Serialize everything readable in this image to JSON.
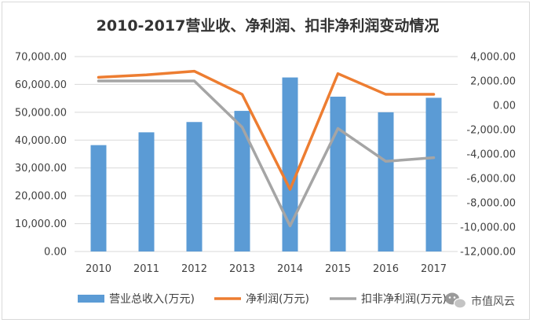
{
  "chart_data": {
    "type": "bar+line",
    "title": "2010-2017营业收、净利润、扣非净利润变动情况",
    "categories": [
      "2010",
      "2011",
      "2012",
      "2013",
      "2014",
      "2015",
      "2016",
      "2017"
    ],
    "series": [
      {
        "name": "营业总收入(万元)",
        "kind": "bar",
        "axis": "left",
        "color": "#5b9bd5",
        "values": [
          38200,
          42800,
          46500,
          50500,
          62500,
          55600,
          50000,
          55200
        ]
      },
      {
        "name": "净利润(万元)",
        "kind": "line",
        "axis": "right",
        "color": "#ed7d31",
        "values": [
          2300,
          2500,
          2800,
          900,
          -6900,
          2600,
          900,
          900
        ]
      },
      {
        "name": "扣非净利润(万元)",
        "kind": "line",
        "axis": "right",
        "color": "#a5a5a5",
        "values": [
          2000,
          2000,
          2000,
          -1800,
          -9900,
          -1900,
          -4600,
          -4300
        ]
      }
    ],
    "left_axis": {
      "ylim": [
        0,
        70000
      ],
      "ticks": [
        "0.00",
        "10,000.00",
        "20,000.00",
        "30,000.00",
        "40,000.00",
        "50,000.00",
        "60,000.00",
        "70,000.00"
      ]
    },
    "right_axis": {
      "ylim": [
        -12000,
        4000
      ],
      "ticks": [
        "-12,000.00",
        "-10,000.00",
        "-8,000.00",
        "-6,000.00",
        "-4,000.00",
        "-2,000.00",
        "0.00",
        "2,000.00",
        "4,000.00"
      ]
    },
    "grid": "horizontal",
    "legend": "bottom"
  },
  "legend_labels": [
    "营业总收入(万元)",
    "净利润(万元)",
    "扣非净利润(万元)"
  ],
  "watermark": {
    "text": "市值风云",
    "icon": "wechat-icon"
  }
}
